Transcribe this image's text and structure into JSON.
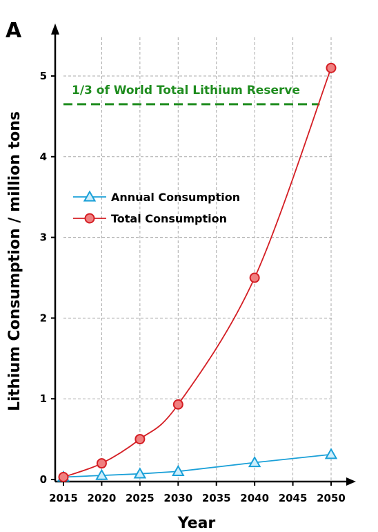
{
  "panel_label": "A",
  "colors": {
    "annual": "#1aa0d8",
    "total": "#d41e24",
    "total_fill": "#f08080",
    "annual_fill": "#cfeefb",
    "reference": "#1e8c1e",
    "grid": "#aaaaaa"
  },
  "chart_data": {
    "type": "line",
    "xlabel": "Year",
    "ylabel": "Lithium Consumption / million tons",
    "xlim": [
      2015,
      2050
    ],
    "ylim": [
      0,
      5
    ],
    "x_ticks": [
      2015,
      2020,
      2025,
      2030,
      2035,
      2040,
      2045,
      2050
    ],
    "y_ticks": [
      0,
      1,
      2,
      3,
      4,
      5
    ],
    "x_tick_labels": [
      "2015",
      "2020",
      "2025",
      "2030",
      "2035",
      "2040",
      "2045",
      "2050"
    ],
    "y_tick_labels": [
      "0",
      "1",
      "2",
      "3",
      "4",
      "5"
    ],
    "grid": true,
    "legend_position": "middle-left",
    "series": [
      {
        "name": "Annual Consumption",
        "marker": "triangle",
        "x": [
          2015,
          2020,
          2025,
          2030,
          2040,
          2050
        ],
        "y": [
          0.03,
          0.05,
          0.07,
          0.1,
          0.21,
          0.31
        ]
      },
      {
        "name": "Total Consumption",
        "marker": "circle",
        "x": [
          2015,
          2020,
          2025,
          2030,
          2040,
          2050
        ],
        "y": [
          0.03,
          0.2,
          0.5,
          0.93,
          2.5,
          5.1
        ]
      }
    ],
    "reference_line": {
      "label": "1/3 of World Total Lithium Reserve",
      "y": 4.65,
      "x_range": [
        2015,
        2048.5
      ],
      "style": "dashed"
    }
  }
}
